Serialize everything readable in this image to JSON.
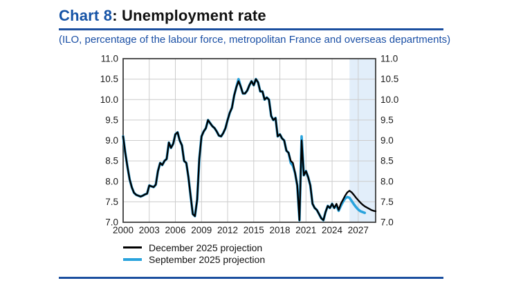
{
  "page": {
    "title_prefix": "Chart 8",
    "title_rest": ": Unemployment rate",
    "subtitle": "(ILO, percentage of the labour force, metropolitan France and overseas departments)"
  },
  "legend": [
    {
      "label": "December 2025 projection",
      "color": "#000000"
    },
    {
      "label": "September 2025 projection",
      "color": "#29a3dd"
    }
  ],
  "colors": {
    "title_blue": "#1553a6",
    "rule_blue": "#1b4f9f",
    "subtitle_blue": "#1a4fa5",
    "december_line": "#000000",
    "september_line": "#29a3dd",
    "projection_band": "#e2eefa",
    "grid": "#cccccc",
    "plot_border": "#3c3c3c",
    "axis_text": "#1a1a1a"
  },
  "chart_data": {
    "type": "line",
    "title": "Chart 8: Unemployment rate",
    "subtitle": "(ILO, percentage of the labour force, metropolitan France and overseas departments)",
    "grid": true,
    "legend_position": "bottom",
    "x_axis": {
      "range": [
        2000,
        2029
      ],
      "ticks": [
        2000,
        2003,
        2006,
        2009,
        2012,
        2015,
        2018,
        2021,
        2024,
        2027
      ],
      "tick_labels": [
        "2000",
        "2003",
        "2006",
        "2009",
        "2012",
        "2015",
        "2018",
        "2021",
        "2024",
        "2027"
      ]
    },
    "y_axis": {
      "range": [
        7.0,
        11.0
      ],
      "ticks": [
        7.0,
        7.5,
        8.0,
        8.5,
        9.0,
        9.5,
        10.0,
        10.5,
        11.0
      ],
      "tick_labels": [
        "7.0",
        "7.5",
        "8.0",
        "8.5",
        "9.0",
        "9.5",
        "10.0",
        "10.5",
        "11.0"
      ],
      "sides": "both"
    },
    "projection_band": {
      "from": 2026.0,
      "to": 2029.0
    },
    "frequency": "quarterly",
    "series": [
      {
        "name": "December 2025 projection",
        "color": "#000000",
        "start_year": 2000,
        "projection_starts": 2025.75,
        "values": [
          9.1,
          8.7,
          8.35,
          8.05,
          7.85,
          7.72,
          7.67,
          7.65,
          7.63,
          7.65,
          7.68,
          7.7,
          7.9,
          7.88,
          7.86,
          7.92,
          8.25,
          8.45,
          8.4,
          8.5,
          8.55,
          8.95,
          8.82,
          8.92,
          9.15,
          9.2,
          9.0,
          8.88,
          8.5,
          8.45,
          8.1,
          7.65,
          7.2,
          7.15,
          7.55,
          8.55,
          9.1,
          9.22,
          9.3,
          9.5,
          9.42,
          9.35,
          9.3,
          9.22,
          9.12,
          9.1,
          9.18,
          9.3,
          9.5,
          9.68,
          9.8,
          10.1,
          10.3,
          10.45,
          10.32,
          10.15,
          10.15,
          10.22,
          10.35,
          10.45,
          10.35,
          10.5,
          10.42,
          10.2,
          10.2,
          10.0,
          10.05,
          10.0,
          9.6,
          9.5,
          9.55,
          9.1,
          9.15,
          9.05,
          9.0,
          8.75,
          8.7,
          8.5,
          8.45,
          8.2,
          7.9,
          7.05,
          9.0,
          8.15,
          8.25,
          8.1,
          7.9,
          7.45,
          7.35,
          7.3,
          7.2,
          7.1,
          7.05,
          7.25,
          7.4,
          7.35,
          7.45,
          7.35,
          7.45,
          7.3,
          7.45,
          7.55,
          7.65,
          7.73,
          7.77,
          7.73,
          7.67,
          7.6,
          7.54,
          7.48,
          7.43,
          7.39,
          7.36,
          7.33,
          7.3,
          7.28,
          7.27
        ]
      },
      {
        "name": "September 2025 projection",
        "color": "#29a3dd",
        "start_year": 2000,
        "projection_starts": 2025.5,
        "values": [
          9.1,
          8.7,
          8.35,
          8.05,
          7.85,
          7.72,
          7.67,
          7.65,
          7.63,
          7.65,
          7.68,
          7.7,
          7.9,
          7.88,
          7.86,
          7.92,
          8.25,
          8.45,
          8.4,
          8.5,
          8.55,
          8.95,
          8.82,
          8.92,
          9.15,
          9.2,
          9.0,
          8.88,
          8.5,
          8.45,
          8.1,
          7.65,
          7.2,
          7.15,
          7.55,
          8.55,
          9.1,
          9.22,
          9.3,
          9.5,
          9.42,
          9.35,
          9.3,
          9.22,
          9.12,
          9.1,
          9.18,
          9.3,
          9.5,
          9.68,
          9.8,
          10.1,
          10.3,
          10.5,
          10.32,
          10.15,
          10.15,
          10.22,
          10.35,
          10.45,
          10.35,
          10.5,
          10.42,
          10.2,
          10.2,
          10.0,
          10.05,
          10.0,
          9.6,
          9.5,
          9.55,
          9.1,
          9.15,
          9.05,
          9.0,
          8.75,
          8.7,
          8.45,
          8.38,
          8.2,
          7.9,
          7.05,
          9.1,
          8.15,
          8.25,
          8.1,
          7.9,
          7.45,
          7.35,
          7.3,
          7.2,
          7.1,
          7.05,
          7.25,
          7.4,
          7.35,
          7.45,
          7.35,
          7.42,
          7.28,
          7.4,
          7.5,
          7.58,
          7.62,
          7.6,
          7.52,
          7.44,
          7.37,
          7.31,
          7.27,
          7.25,
          7.23
        ]
      }
    ]
  }
}
